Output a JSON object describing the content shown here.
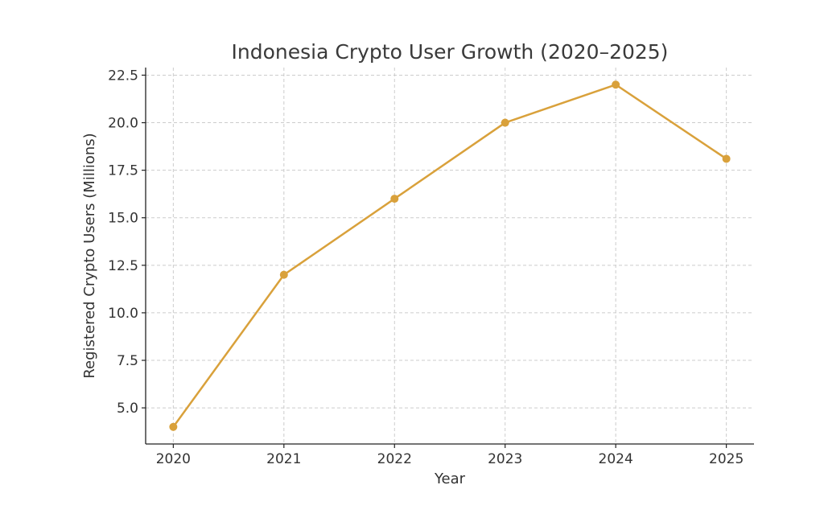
{
  "chart_data": {
    "type": "line",
    "title": "Indonesia Crypto User Growth (2020–2025)",
    "xlabel": "Year",
    "ylabel": "Registered Crypto Users (Millions)",
    "x": [
      2020,
      2021,
      2022,
      2023,
      2024,
      2025
    ],
    "x_tick_labels": [
      "2020",
      "2021",
      "2022",
      "2023",
      "2024",
      "2025"
    ],
    "series": [
      {
        "values": [
          4,
          12,
          16,
          20,
          22,
          18.1
        ],
        "color": "#d9a13b",
        "marker": "circle"
      }
    ],
    "y_ticks": [
      5.0,
      7.5,
      10.0,
      12.5,
      15.0,
      17.5,
      20.0,
      22.5
    ],
    "y_tick_labels": [
      "5.0",
      "7.5",
      "10.0",
      "12.5",
      "15.0",
      "17.5",
      "20.0",
      "22.5"
    ],
    "ylim": [
      3.1,
      22.9
    ],
    "xlim": [
      2019.75,
      2025.25
    ],
    "grid": true,
    "legend": "none"
  }
}
